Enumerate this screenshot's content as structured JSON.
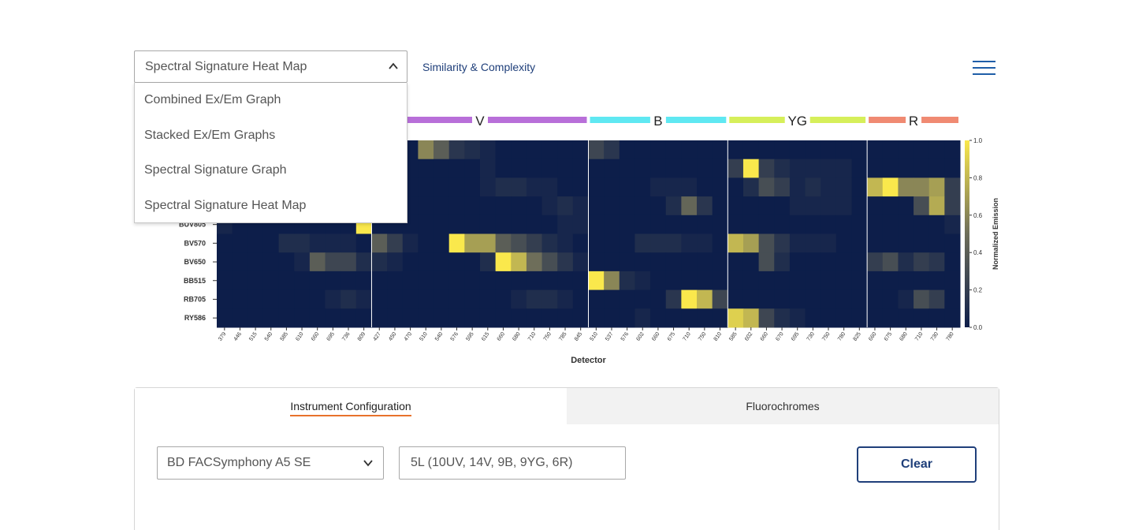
{
  "view_selector": {
    "selected": "Spectral Signature Heat Map",
    "options": [
      "Combined Ex/Em Graph",
      "Stacked Ex/Em Graphs",
      "Spectral Signature Graph",
      "Spectral Signature Heat Map"
    ]
  },
  "header": {
    "similarity_link": "Similarity & Complexity"
  },
  "colors": {
    "accent": "#1f3f7a",
    "tab_underline": "#e8722c",
    "heat_low": "#0d1e4a",
    "heat_high": "#fae84c"
  },
  "icons": {
    "menu": "hamburger-icon",
    "dropdown": "chevron-up-icon",
    "select": "chevron-down-icon"
  },
  "chart_data": {
    "type": "heatmap",
    "xlabel": "Detector",
    "colorbar_label": "Normalized Emission",
    "colorbar_ticks": [
      "1.0",
      "0.8",
      "0.6",
      "0.4",
      "0.2",
      "0.0"
    ],
    "colorbar_range": [
      0,
      1
    ],
    "lasers": [
      {
        "name": "V",
        "color": "#b86fd9",
        "detectors": [
          "427",
          "450",
          "470",
          "510",
          "540",
          "576",
          "595",
          "615",
          "660",
          "680",
          "710",
          "750",
          "785",
          "845"
        ]
      },
      {
        "name": "B",
        "color": "#5fe8f2",
        "detectors": [
          "510",
          "537",
          "576",
          "602",
          "660",
          "675",
          "710",
          "750",
          "810"
        ]
      },
      {
        "name": "YG",
        "color": "#d6ef5a",
        "detectors": [
          "585",
          "602",
          "660",
          "670",
          "695",
          "730",
          "750",
          "780",
          "825"
        ]
      },
      {
        "name": "R",
        "color": "#f08a72",
        "detectors": [
          "660",
          "675",
          "680",
          "710",
          "730",
          "780"
        ]
      }
    ],
    "uv_detectors": [
      "379",
      "446",
      "515",
      "540",
      "585",
      "610",
      "660",
      "695",
      "736",
      "809"
    ],
    "fluorochromes": [
      "",
      "",
      "",
      "",
      "BUV805",
      "BV570",
      "BV650",
      "BB515",
      "RB705",
      "RY586"
    ],
    "values": [
      [
        0,
        0,
        0,
        0,
        0,
        0,
        0,
        0,
        0,
        0,
        0,
        0,
        0,
        0.6,
        0.4,
        0.15,
        0.1,
        0.05,
        0,
        0,
        0,
        0,
        0,
        0,
        0.25,
        0.15,
        0,
        0,
        0,
        0,
        0,
        0,
        0,
        0,
        0,
        0,
        0,
        0,
        0,
        0,
        0,
        0,
        0,
        0,
        0,
        0,
        0,
        0
      ],
      [
        0,
        0,
        0,
        0,
        0,
        0,
        0,
        0,
        0,
        0,
        0,
        0,
        0,
        0,
        0,
        0,
        0,
        0.05,
        0,
        0,
        0,
        0,
        0,
        0,
        0,
        0,
        0,
        0,
        0,
        0,
        0,
        0,
        0,
        0.2,
        1,
        0.2,
        0.1,
        0.05,
        0.05,
        0.05,
        0.05,
        0,
        0,
        0,
        0,
        0,
        0,
        0
      ],
      [
        0,
        0,
        0,
        0,
        0,
        0,
        0,
        0,
        0,
        0,
        0,
        0,
        0,
        0,
        0,
        0,
        0,
        0.05,
        0.1,
        0.1,
        0.05,
        0.05,
        0,
        0,
        0,
        0,
        0,
        0,
        0.05,
        0.05,
        0.05,
        0,
        0,
        0,
        0.1,
        0.3,
        0.2,
        0.05,
        0.1,
        0.05,
        0.05,
        0,
        0.8,
        1,
        0.6,
        0.6,
        0.7,
        0.2
      ],
      [
        0,
        0,
        0,
        0,
        0,
        0,
        0,
        0,
        0,
        0,
        0,
        0,
        0,
        0,
        0,
        0,
        0,
        0,
        0,
        0,
        0,
        0.05,
        0.1,
        0.05,
        0,
        0,
        0,
        0,
        0,
        0.1,
        0.45,
        0.15,
        0,
        0,
        0,
        0,
        0,
        0.05,
        0.05,
        0.05,
        0.05,
        0,
        0,
        0,
        0,
        0.3,
        0.75,
        0.2
      ],
      [
        0.05,
        0,
        0,
        0,
        0,
        0,
        0,
        0,
        0,
        1,
        0,
        0,
        0,
        0,
        0,
        0,
        0,
        0,
        0,
        0,
        0,
        0,
        0.05,
        0.05,
        0,
        0,
        0,
        0,
        0,
        0,
        0,
        0,
        0,
        0,
        0,
        0,
        0,
        0,
        0,
        0,
        0,
        0,
        0,
        0,
        0,
        0,
        0,
        0.05
      ],
      [
        0,
        0,
        0,
        0,
        0.1,
        0.1,
        0.05,
        0.05,
        0.05,
        0,
        0.4,
        0.2,
        0.05,
        0,
        0,
        1,
        0.7,
        0.7,
        0.4,
        0.3,
        0.2,
        0.1,
        0.05,
        0,
        0,
        0,
        0,
        0.1,
        0.1,
        0.1,
        0.05,
        0.05,
        0,
        0.8,
        0.7,
        0.3,
        0.15,
        0.05,
        0.05,
        0.05,
        0,
        0,
        0,
        0,
        0,
        0,
        0,
        0
      ],
      [
        0,
        0,
        0,
        0,
        0,
        0.05,
        0.4,
        0.25,
        0.25,
        0.1,
        0.1,
        0.05,
        0,
        0,
        0,
        0,
        0,
        0.1,
        1,
        0.8,
        0.5,
        0.3,
        0.15,
        0.05,
        0,
        0,
        0,
        0,
        0,
        0,
        0,
        0,
        0,
        0,
        0,
        0.3,
        0.1,
        0,
        0,
        0,
        0,
        0,
        0.2,
        0.3,
        0.1,
        0.2,
        0.15,
        0
      ],
      [
        0,
        0,
        0,
        0,
        0,
        0,
        0,
        0,
        0,
        0,
        0,
        0,
        0,
        0,
        0,
        0,
        0,
        0,
        0,
        0,
        0,
        0,
        0,
        0,
        1,
        0.6,
        0.1,
        0.05,
        0,
        0,
        0,
        0,
        0,
        0,
        0,
        0,
        0,
        0,
        0,
        0,
        0,
        0,
        0,
        0,
        0,
        0,
        0,
        0
      ],
      [
        0,
        0,
        0,
        0,
        0,
        0,
        0,
        0.05,
        0.1,
        0.05,
        0,
        0,
        0,
        0,
        0,
        0,
        0,
        0,
        0,
        0.05,
        0.1,
        0.1,
        0.05,
        0,
        0,
        0,
        0,
        0,
        0,
        0.15,
        1,
        0.8,
        0.25,
        0,
        0,
        0,
        0,
        0,
        0,
        0,
        0,
        0,
        0,
        0,
        0.05,
        0.3,
        0.2,
        0
      ],
      [
        0,
        0,
        0,
        0,
        0,
        0,
        0,
        0,
        0,
        0,
        0,
        0,
        0,
        0,
        0,
        0,
        0,
        0,
        0,
        0,
        0,
        0,
        0,
        0,
        0,
        0,
        0,
        0.05,
        0,
        0,
        0,
        0,
        0,
        0.9,
        0.8,
        0.25,
        0.1,
        0.05,
        0,
        0,
        0,
        0,
        0,
        0,
        0,
        0,
        0,
        0
      ]
    ]
  },
  "tabs": {
    "instrument": "Instrument Configuration",
    "fluorochromes": "Fluorochromes"
  },
  "instrument": {
    "selected": "BD FACSymphony A5 SE",
    "configuration": "5L (10UV, 14V, 9B, 9YG, 6R)",
    "clear_label": "Clear"
  }
}
